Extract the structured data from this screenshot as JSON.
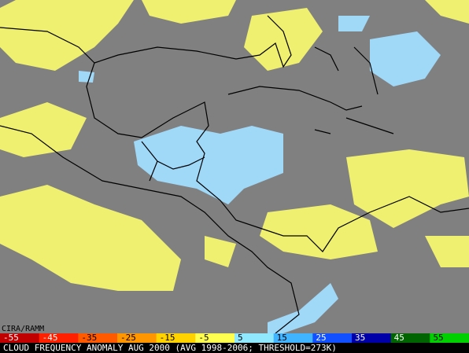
{
  "credit": "CIRA/RAMM",
  "title": "CLOUD FREQUENCY ANOMALY AUG 2000 (AVG 1998-2006; THRESHOLD=273K)",
  "colorbar": {
    "labels": [
      -55,
      -45,
      -35,
      -25,
      -15,
      -5,
      5,
      15,
      25,
      35,
      45,
      55
    ],
    "colors": [
      "#c00000",
      "#ff2000",
      "#ff5a00",
      "#ff9600",
      "#ffd200",
      "#ffff50",
      "#90e8ff",
      "#40b4ff",
      "#1050ff",
      "#0000a8",
      "#006400",
      "#00d000"
    ]
  }
}
